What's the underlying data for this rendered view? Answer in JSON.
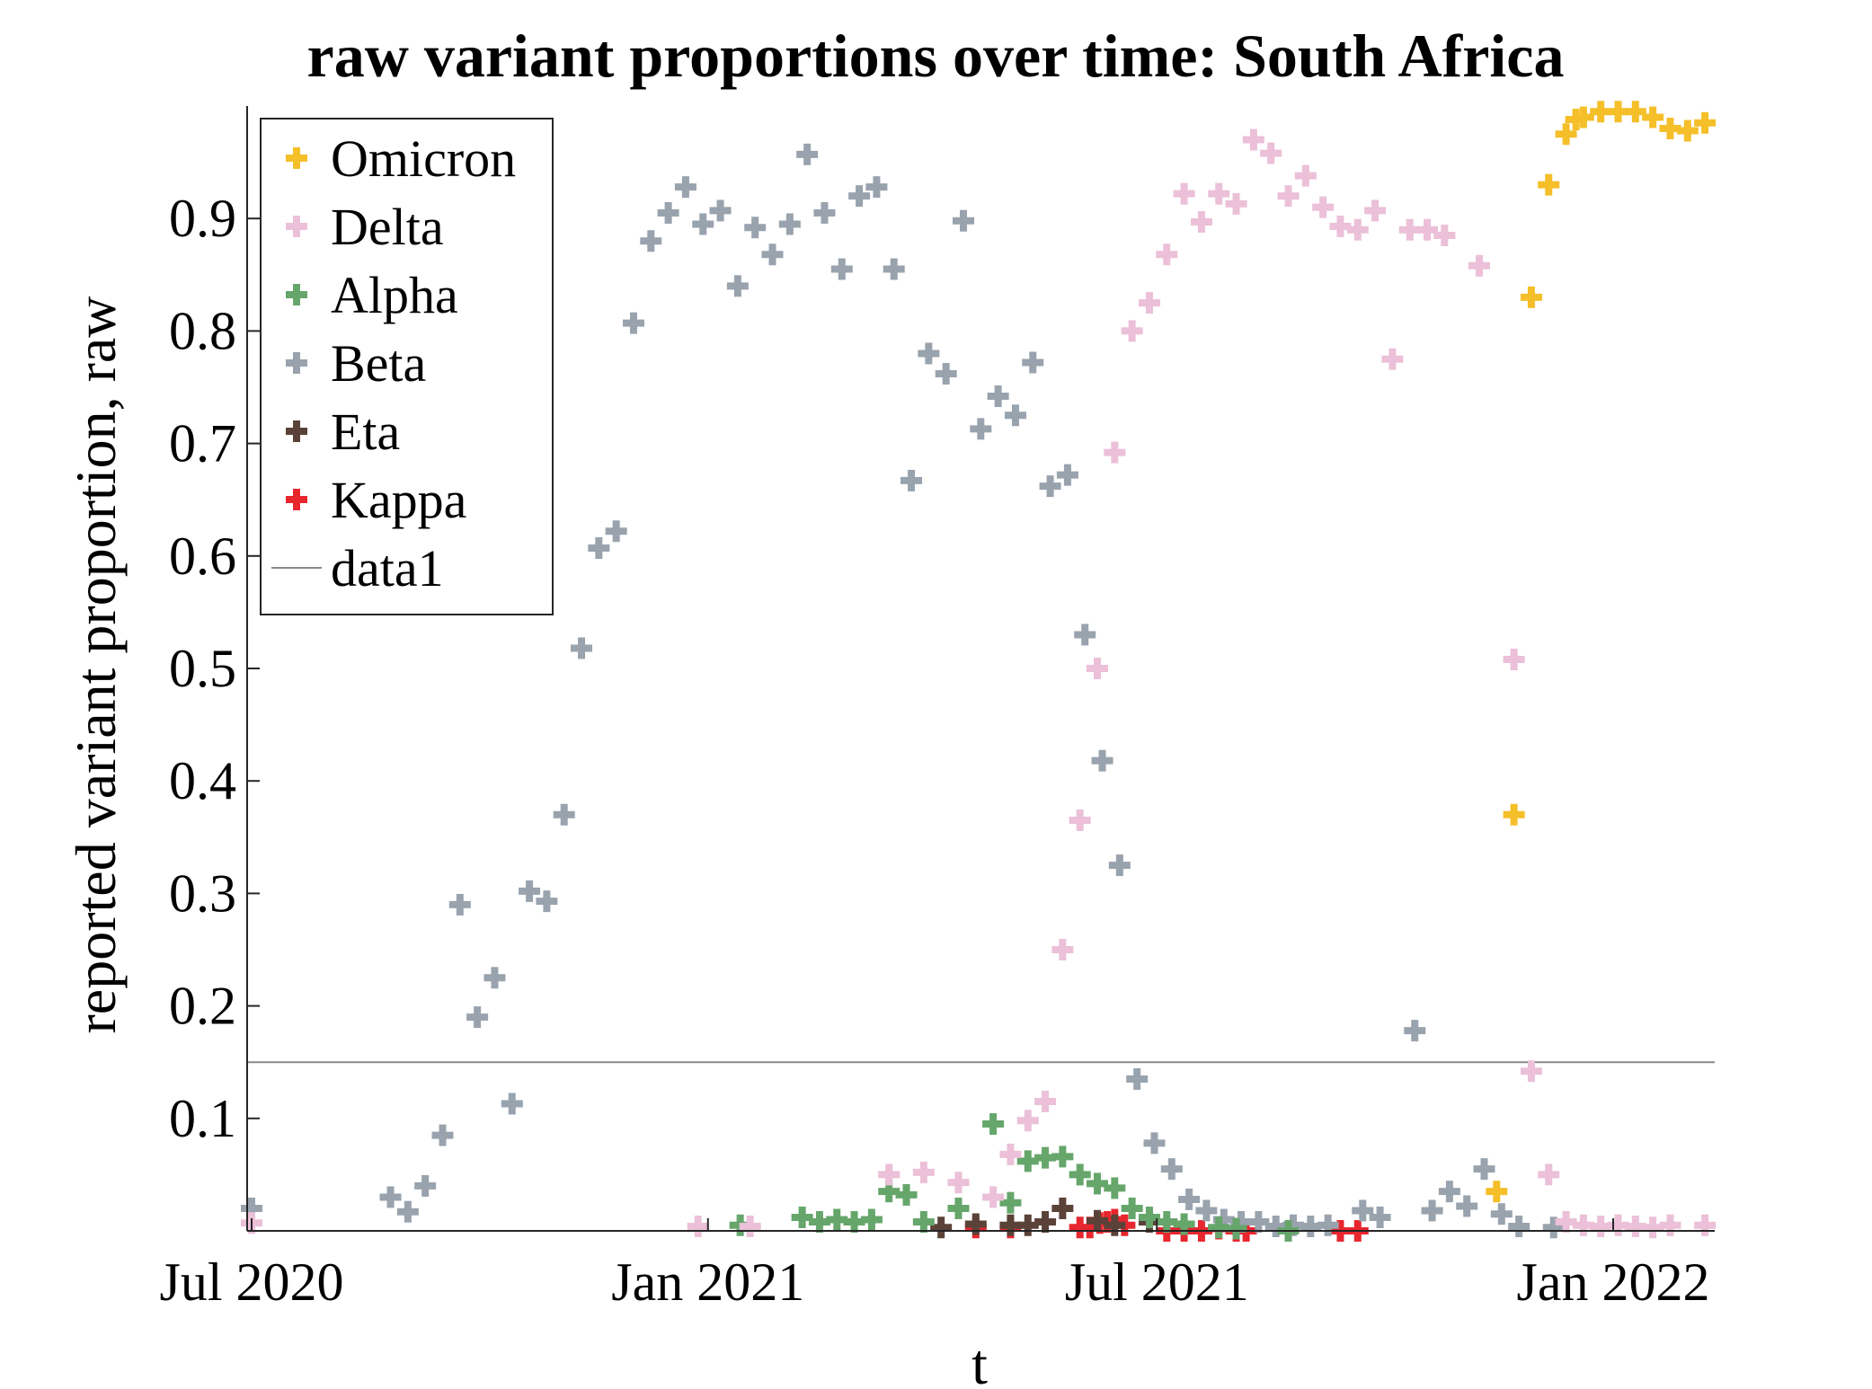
{
  "chart_data": {
    "type": "scatter",
    "title": "raw variant proportions over time: South Africa",
    "xlabel": "t",
    "ylabel": "reported variant proportion, raw",
    "xlim": [
      "2020-07-01",
      "2022-01-15"
    ],
    "ylim": [
      0,
      1
    ],
    "x_ticks": [
      {
        "date": "2020-07-01",
        "label": "Jul 2020"
      },
      {
        "date": "2021-01-01",
        "label": "Jan 2021"
      },
      {
        "date": "2021-07-01",
        "label": "Jul 2021"
      },
      {
        "date": "2022-01-01",
        "label": "Jan 2022"
      }
    ],
    "y_ticks": [
      {
        "value": 0.1,
        "label": "0.1"
      },
      {
        "value": 0.2,
        "label": "0.2"
      },
      {
        "value": 0.3,
        "label": "0.3"
      },
      {
        "value": 0.4,
        "label": "0.4"
      },
      {
        "value": 0.5,
        "label": "0.5"
      },
      {
        "value": 0.6,
        "label": "0.6"
      },
      {
        "value": 0.7,
        "label": "0.7"
      },
      {
        "value": 0.8,
        "label": "0.8"
      },
      {
        "value": 0.9,
        "label": "0.9"
      }
    ],
    "grid": false,
    "legend_position": "top-left",
    "series": [
      {
        "name": "Omicron",
        "color": "#F5BF2A",
        "marker": "plus",
        "points": [
          [
            "2021-11-15",
            0.035
          ],
          [
            "2021-11-22",
            0.37
          ],
          [
            "2021-11-29",
            0.83
          ],
          [
            "2021-12-06",
            0.93
          ],
          [
            "2021-12-13",
            0.975
          ],
          [
            "2021-12-17",
            0.988
          ],
          [
            "2021-12-20",
            0.99
          ],
          [
            "2021-12-27",
            0.995
          ],
          [
            "2022-01-03",
            0.995
          ],
          [
            "2022-01-10",
            0.995
          ],
          [
            "2022-01-17",
            0.99
          ],
          [
            "2022-01-24",
            0.98
          ],
          [
            "2022-01-31",
            0.978
          ],
          [
            "2022-02-07",
            0.985
          ]
        ]
      },
      {
        "name": "Delta",
        "color": "#EBC0D8",
        "marker": "plus",
        "points": [
          [
            "2020-07-01",
            0.007
          ],
          [
            "2020-12-28",
            0.004
          ],
          [
            "2021-01-18",
            0.004
          ],
          [
            "2021-03-15",
            0.05
          ],
          [
            "2021-03-29",
            0.052
          ],
          [
            "2021-04-12",
            0.043
          ],
          [
            "2021-04-26",
            0.03
          ],
          [
            "2021-05-03",
            0.068
          ],
          [
            "2021-05-10",
            0.098
          ],
          [
            "2021-05-17",
            0.115
          ],
          [
            "2021-05-24",
            0.25
          ],
          [
            "2021-05-31",
            0.365
          ],
          [
            "2021-06-07",
            0.5
          ],
          [
            "2021-06-14",
            0.692
          ],
          [
            "2021-06-21",
            0.8
          ],
          [
            "2021-06-28",
            0.825
          ],
          [
            "2021-07-05",
            0.868
          ],
          [
            "2021-07-12",
            0.922
          ],
          [
            "2021-07-19",
            0.897
          ],
          [
            "2021-07-26",
            0.922
          ],
          [
            "2021-08-02",
            0.913
          ],
          [
            "2021-08-09",
            0.97
          ],
          [
            "2021-08-16",
            0.958
          ],
          [
            "2021-08-23",
            0.92
          ],
          [
            "2021-08-30",
            0.938
          ],
          [
            "2021-09-06",
            0.91
          ],
          [
            "2021-09-13",
            0.893
          ],
          [
            "2021-09-20",
            0.89
          ],
          [
            "2021-09-27",
            0.907
          ],
          [
            "2021-10-04",
            0.775
          ],
          [
            "2021-10-11",
            0.89
          ],
          [
            "2021-10-18",
            0.89
          ],
          [
            "2021-10-25",
            0.885
          ],
          [
            "2021-11-08",
            0.858
          ],
          [
            "2021-11-22",
            0.508
          ],
          [
            "2021-11-29",
            0.142
          ],
          [
            "2021-12-06",
            0.05
          ],
          [
            "2021-12-13",
            0.008
          ],
          [
            "2021-12-20",
            0.005
          ],
          [
            "2021-12-27",
            0.004
          ],
          [
            "2022-01-03",
            0.005
          ],
          [
            "2022-01-10",
            0.004
          ],
          [
            "2022-01-17",
            0.003
          ],
          [
            "2022-01-24",
            0.005
          ],
          [
            "2022-02-07",
            0.005
          ]
        ]
      },
      {
        "name": "Alpha",
        "color": "#66A66B",
        "marker": "plus",
        "points": [
          [
            "2021-01-14",
            0.005
          ],
          [
            "2021-02-08",
            0.012
          ],
          [
            "2021-02-15",
            0.008
          ],
          [
            "2021-02-22",
            0.01
          ],
          [
            "2021-03-01",
            0.008
          ],
          [
            "2021-03-08",
            0.01
          ],
          [
            "2021-03-15",
            0.035
          ],
          [
            "2021-03-22",
            0.032
          ],
          [
            "2021-03-29",
            0.008
          ],
          [
            "2021-04-12",
            0.02
          ],
          [
            "2021-04-26",
            0.095
          ],
          [
            "2021-05-03",
            0.025
          ],
          [
            "2021-05-10",
            0.062
          ],
          [
            "2021-05-17",
            0.065
          ],
          [
            "2021-05-24",
            0.066
          ],
          [
            "2021-05-31",
            0.05
          ],
          [
            "2021-06-07",
            0.042
          ],
          [
            "2021-06-14",
            0.038
          ],
          [
            "2021-06-21",
            0.02
          ],
          [
            "2021-06-28",
            0.012
          ],
          [
            "2021-07-05",
            0.008
          ],
          [
            "2021-07-12",
            0.006
          ],
          [
            "2021-07-26",
            0.003
          ],
          [
            "2021-08-02",
            0.002
          ],
          [
            "2021-08-23",
            0.0
          ]
        ]
      },
      {
        "name": "Beta",
        "color": "#99A3AE",
        "marker": "plus",
        "points": [
          [
            "2020-07-01",
            0.02
          ],
          [
            "2020-08-26",
            0.03
          ],
          [
            "2020-09-02",
            0.017
          ],
          [
            "2020-09-09",
            0.04
          ],
          [
            "2020-09-16",
            0.085
          ],
          [
            "2020-09-23",
            0.29
          ],
          [
            "2020-09-30",
            0.19
          ],
          [
            "2020-10-07",
            0.225
          ],
          [
            "2020-10-14",
            0.113
          ],
          [
            "2020-10-21",
            0.302
          ],
          [
            "2020-10-28",
            0.293
          ],
          [
            "2020-11-04",
            0.37
          ],
          [
            "2020-11-11",
            0.518
          ],
          [
            "2020-11-18",
            0.607
          ],
          [
            "2020-11-25",
            0.622
          ],
          [
            "2020-12-02",
            0.807
          ],
          [
            "2020-12-09",
            0.88
          ],
          [
            "2020-12-16",
            0.905
          ],
          [
            "2020-12-23",
            0.928
          ],
          [
            "2020-12-30",
            0.895
          ],
          [
            "2021-01-06",
            0.907
          ],
          [
            "2021-01-13",
            0.84
          ],
          [
            "2021-01-20",
            0.892
          ],
          [
            "2021-01-27",
            0.868
          ],
          [
            "2021-02-03",
            0.895
          ],
          [
            "2021-02-10",
            0.957
          ],
          [
            "2021-02-17",
            0.905
          ],
          [
            "2021-02-24",
            0.855
          ],
          [
            "2021-03-03",
            0.92
          ],
          [
            "2021-03-10",
            0.928
          ],
          [
            "2021-03-17",
            0.855
          ],
          [
            "2021-03-24",
            0.667
          ],
          [
            "2021-03-31",
            0.78
          ],
          [
            "2021-04-07",
            0.762
          ],
          [
            "2021-04-14",
            0.898
          ],
          [
            "2021-04-21",
            0.713
          ],
          [
            "2021-04-28",
            0.742
          ],
          [
            "2021-05-05",
            0.725
          ],
          [
            "2021-05-12",
            0.772
          ],
          [
            "2021-05-19",
            0.662
          ],
          [
            "2021-05-26",
            0.672
          ],
          [
            "2021-06-02",
            0.53
          ],
          [
            "2021-06-09",
            0.418
          ],
          [
            "2021-06-16",
            0.325
          ],
          [
            "2021-06-23",
            0.135
          ],
          [
            "2021-06-30",
            0.078
          ],
          [
            "2021-07-07",
            0.055
          ],
          [
            "2021-07-14",
            0.028
          ],
          [
            "2021-07-21",
            0.018
          ],
          [
            "2021-07-28",
            0.01
          ],
          [
            "2021-08-04",
            0.008
          ],
          [
            "2021-08-11",
            0.008
          ],
          [
            "2021-08-18",
            0.004
          ],
          [
            "2021-08-25",
            0.005
          ],
          [
            "2021-09-01",
            0.004
          ],
          [
            "2021-09-08",
            0.005
          ],
          [
            "2021-09-22",
            0.018
          ],
          [
            "2021-09-29",
            0.012
          ],
          [
            "2021-10-13",
            0.178
          ],
          [
            "2021-10-20",
            0.018
          ],
          [
            "2021-10-27",
            0.035
          ],
          [
            "2021-11-03",
            0.022
          ],
          [
            "2021-11-10",
            0.055
          ],
          [
            "2021-11-17",
            0.015
          ],
          [
            "2021-11-24",
            0.004
          ],
          [
            "2021-12-08",
            0.003
          ]
        ]
      },
      {
        "name": "Eta",
        "color": "#5B4238",
        "marker": "plus",
        "points": [
          [
            "2021-04-05",
            0.003
          ],
          [
            "2021-04-19",
            0.006
          ],
          [
            "2021-05-03",
            0.005
          ],
          [
            "2021-05-10",
            0.005
          ],
          [
            "2021-05-17",
            0.008
          ],
          [
            "2021-05-24",
            0.02
          ],
          [
            "2021-06-07",
            0.009
          ],
          [
            "2021-06-14",
            0.005
          ],
          [
            "2021-06-28",
            0.008
          ]
        ]
      },
      {
        "name": "Kappa",
        "color": "#E8262E",
        "marker": "plus",
        "points": [
          [
            "2021-04-19",
            0.003
          ],
          [
            "2021-05-03",
            0.003
          ],
          [
            "2021-05-31",
            0.003
          ],
          [
            "2021-06-04",
            0.003
          ],
          [
            "2021-06-08",
            0.007
          ],
          [
            "2021-06-11",
            0.008
          ],
          [
            "2021-06-14",
            0.01
          ],
          [
            "2021-06-18",
            0.005
          ],
          [
            "2021-07-05",
            0.0
          ],
          [
            "2021-07-12",
            0.0
          ],
          [
            "2021-07-19",
            0.0
          ],
          [
            "2021-07-26",
            0.002
          ],
          [
            "2021-08-02",
            0.0
          ],
          [
            "2021-08-06",
            0.0
          ],
          [
            "2021-09-13",
            0.0
          ],
          [
            "2021-09-20",
            0.0
          ]
        ]
      }
    ],
    "reference_lines": [
      {
        "name": "data1",
        "color": "#888888",
        "y": 0.15
      }
    ]
  }
}
